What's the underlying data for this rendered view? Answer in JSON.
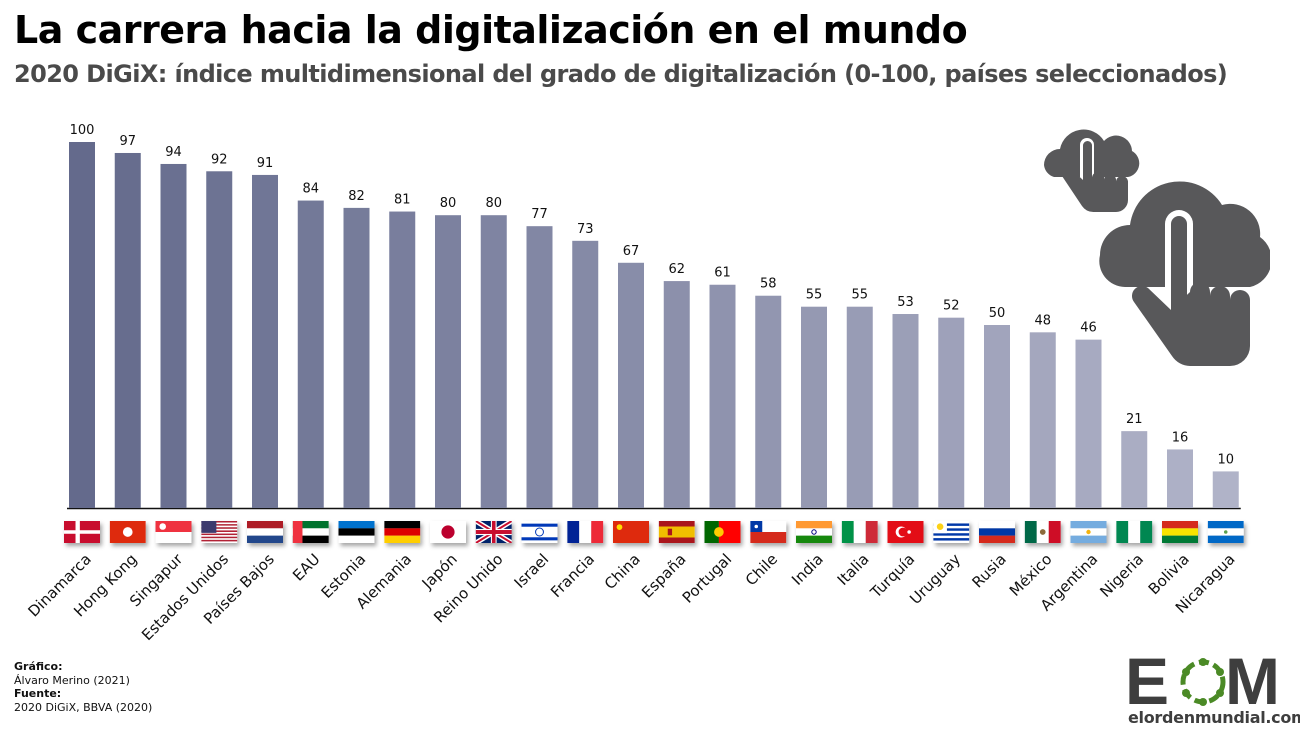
{
  "header": {
    "title": "La carrera hacia la digitalización en el mundo",
    "subtitle": "2020 DiGiX: índice multidimensional del grado de digitalización (0-100, países seleccionados)"
  },
  "chart_data": {
    "type": "bar",
    "title": "La carrera hacia la digitalización en el mundo",
    "subtitle": "2020 DiGiX: índice multidimensional del grado de digitalización (0-100, países seleccionados)",
    "xlabel": "",
    "ylabel": "",
    "ylim": [
      0,
      100
    ],
    "grid": false,
    "categories": [
      "Dinamarca",
      "Hong Kong",
      "Singapur",
      "Estados Unidos",
      "Países Bajos",
      "EAU",
      "Estonia",
      "Alemania",
      "Japón",
      "Reino Unido",
      "Israel",
      "Francia",
      "China",
      "España",
      "Portugal",
      "Chile",
      "India",
      "Italia",
      "Turquía",
      "Uruguay",
      "Rusia",
      "México",
      "Argentina",
      "Nigeria",
      "Bolivia",
      "Nicaragua"
    ],
    "values": [
      100,
      97,
      94,
      92,
      91,
      84,
      82,
      81,
      80,
      80,
      77,
      73,
      67,
      62,
      61,
      58,
      55,
      55,
      53,
      52,
      50,
      48,
      46,
      21,
      16,
      10
    ],
    "flags": [
      "dk",
      "hk",
      "sg",
      "us",
      "nl",
      "ae",
      "ee",
      "de",
      "jp",
      "gb",
      "il",
      "fr",
      "cn",
      "es",
      "pt",
      "cl",
      "in",
      "it",
      "tr",
      "uy",
      "ru",
      "mx",
      "ar",
      "ng",
      "bo",
      "ni"
    ],
    "bar_color_start": "#646a8c",
    "bar_color_end": "#b0b3c8"
  },
  "credits": {
    "graphic_label": "Gráfico:",
    "graphic_value": "Álvaro Merino (2021)",
    "source_label": "Fuente:",
    "source_value": "2020 DiGiX, BBVA (2020)"
  },
  "logo": {
    "letters_left": "E",
    "letters_right": "M",
    "url": "elordenmundial.com",
    "dark_color": "#3e3e3e",
    "accent_color": "#4b8a26"
  },
  "decoration": {
    "icon": "cloud-touch-icon",
    "icon_color": "#58585a"
  }
}
